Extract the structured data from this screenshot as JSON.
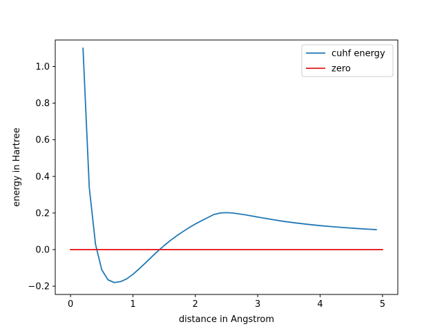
{
  "chart_data": {
    "type": "line",
    "title": "",
    "xlabel": "distance in Angstrom",
    "ylabel": "energy in Hartree",
    "xlim": [
      -0.245,
      5.245
    ],
    "ylim": [
      -0.245,
      1.145
    ],
    "xticks": [
      0,
      1,
      2,
      3,
      4,
      5
    ],
    "xtick_labels": [
      "0",
      "1",
      "2",
      "3",
      "4",
      "5"
    ],
    "yticks": [
      -0.2,
      0.0,
      0.2,
      0.4,
      0.6,
      0.8,
      1.0
    ],
    "ytick_labels": [
      "−0.2",
      "0.0",
      "0.2",
      "0.4",
      "0.6",
      "0.8",
      "1.0"
    ],
    "grid": false,
    "legend_position": "top-right",
    "series": [
      {
        "name": "cuhf energy",
        "color": "#1f77b4",
        "x": [
          0.2,
          0.3,
          0.4,
          0.5,
          0.6,
          0.7,
          0.8,
          0.9,
          1.0,
          1.1,
          1.2,
          1.3,
          1.4,
          1.5,
          1.6,
          1.7,
          1.8,
          1.9,
          2.0,
          2.1,
          2.2,
          2.3,
          2.4,
          2.5,
          2.6,
          2.8,
          3.0,
          3.2,
          3.4,
          3.6,
          3.8,
          4.0,
          4.2,
          4.4,
          4.6,
          4.8,
          4.9
        ],
        "y": [
          1.1,
          0.34,
          0.03,
          -0.11,
          -0.165,
          -0.18,
          -0.175,
          -0.16,
          -0.135,
          -0.105,
          -0.073,
          -0.04,
          -0.008,
          0.022,
          0.05,
          0.075,
          0.098,
          0.12,
          0.14,
          0.158,
          0.175,
          0.192,
          0.2,
          0.202,
          0.2,
          0.19,
          0.178,
          0.166,
          0.155,
          0.146,
          0.138,
          0.131,
          0.125,
          0.12,
          0.115,
          0.111,
          0.109
        ]
      },
      {
        "name": "zero",
        "color": "#e41a1c",
        "x": [
          0.0,
          5.0
        ],
        "y": [
          0.0,
          0.0
        ]
      }
    ]
  }
}
